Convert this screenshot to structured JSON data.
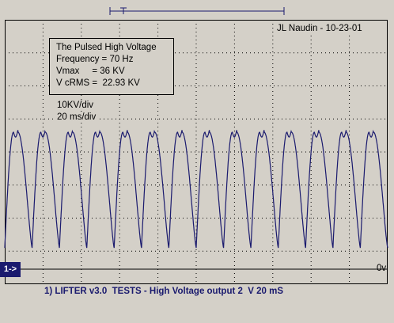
{
  "header": {
    "author": "JL Naudin - 10-23-01"
  },
  "info": {
    "title": "The Pulsed High Voltage",
    "frequency": "Frequency = 70 Hz",
    "vmax": "Vmax     = 36 KV",
    "vcrms": "V cRMS =  22.93 KV"
  },
  "scale": {
    "volts_per_div": "10KV/div",
    "time_per_div": "20 ms/div"
  },
  "channel": {
    "marker": "1->",
    "zero_label": "0v",
    "caption": "1) LIFTER v3.0  TESTS - High Voltage output 2  V 20 mS"
  },
  "colors": {
    "background": "#d4d0c8",
    "trace": "#1a1a6e",
    "grid": "#000000"
  },
  "chart_data": {
    "type": "line",
    "title": "The Pulsed High Voltage",
    "xlabel": "",
    "ylabel": "",
    "frequency_hz": 70,
    "x_unit": "ms",
    "y_unit": "KV",
    "x_range": [
      0,
      200
    ],
    "y_range": [
      -10,
      70
    ],
    "series": [
      {
        "cycles": 14,
        "peak": 36,
        "trough": 1
      }
    ]
  }
}
